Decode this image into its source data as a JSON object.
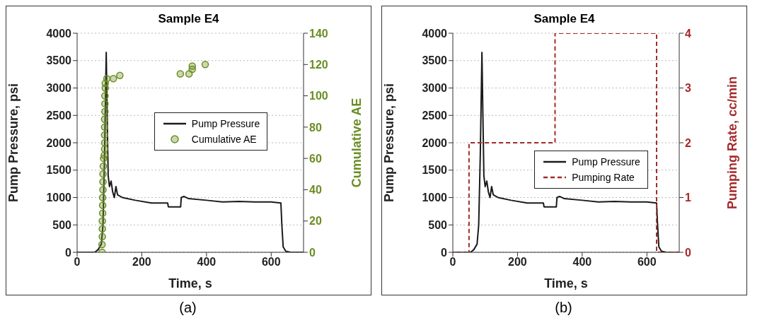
{
  "chart_data": [
    {
      "type": "line",
      "title": "Sample E4",
      "xlabel": "Time, s",
      "ylabel": "Pump Pressure, psi",
      "y2label": "Cumulative AE",
      "xlim": [
        0,
        700
      ],
      "xticks": [
        0,
        200,
        400,
        600
      ],
      "ylim": [
        0,
        4000
      ],
      "yticks": [
        0,
        500,
        1000,
        1500,
        2000,
        2500,
        3000,
        3500,
        4000
      ],
      "y2lim": [
        0,
        140
      ],
      "y2ticks": [
        0,
        20,
        40,
        60,
        80,
        100,
        120,
        140
      ],
      "grid": "y",
      "legend": "center",
      "annotations": [
        "(a)"
      ],
      "series": [
        {
          "name": "Pump Pressure",
          "color": "#1a1a1a",
          "marker": "none",
          "line_style": "solid",
          "x": [
            0,
            55,
            65,
            75,
            80,
            85,
            90,
            93,
            96,
            100,
            105,
            110,
            115,
            120,
            125,
            140,
            180,
            230,
            280,
            282,
            320,
            322,
            330,
            345,
            400,
            450,
            500,
            550,
            600,
            630,
            633,
            637,
            645,
            660,
            700
          ],
          "values": [
            0,
            0,
            50,
            150,
            500,
            1800,
            3650,
            2500,
            1400,
            1200,
            1300,
            1100,
            1000,
            1200,
            1050,
            1000,
            950,
            900,
            900,
            830,
            830,
            1000,
            1020,
            980,
            950,
            920,
            930,
            920,
            920,
            900,
            500,
            100,
            20,
            0,
            0
          ]
        },
        {
          "name": "Cumulative AE",
          "type": "scatter",
          "axis": "y2",
          "color": "#6b8e23",
          "marker": "circle",
          "x": [
            77,
            77,
            78,
            78,
            78,
            79,
            79,
            79,
            80,
            80,
            80,
            81,
            82,
            84,
            85,
            85,
            85,
            85,
            85,
            86,
            86,
            86,
            87,
            87,
            92,
            112,
            132,
            319,
            346,
            356,
            356,
            396
          ],
          "values": [
            0,
            5,
            10,
            15,
            20,
            25,
            30,
            35,
            40,
            45,
            50,
            55,
            60,
            62,
            66,
            70,
            75,
            80,
            85,
            90,
            95,
            100,
            105,
            108,
            111,
            111,
            113,
            114,
            114,
            117,
            119,
            120
          ]
        }
      ]
    },
    {
      "type": "line",
      "title": "Sample E4",
      "xlabel": "Time, s",
      "ylabel": "Pump Pressure, psi",
      "y2label": "Pumping Rate, cc/min",
      "xlim": [
        0,
        700
      ],
      "xticks": [
        0,
        200,
        400,
        600
      ],
      "ylim": [
        0,
        4000
      ],
      "yticks": [
        0,
        500,
        1000,
        1500,
        2000,
        2500,
        3000,
        3500,
        4000
      ],
      "y2lim": [
        0,
        4
      ],
      "y2ticks": [
        0,
        1,
        2,
        3,
        4
      ],
      "grid": "y",
      "legend": "right",
      "annotations": [
        "(b)"
      ],
      "series": [
        {
          "name": "Pump Pressure",
          "color": "#1a1a1a",
          "marker": "none",
          "line_style": "solid",
          "x": [
            0,
            55,
            65,
            75,
            80,
            85,
            90,
            93,
            96,
            100,
            105,
            110,
            115,
            120,
            125,
            140,
            180,
            230,
            280,
            282,
            320,
            322,
            330,
            345,
            400,
            450,
            500,
            550,
            600,
            630,
            633,
            637,
            645,
            660,
            700
          ],
          "values": [
            0,
            0,
            50,
            150,
            500,
            1800,
            3650,
            2500,
            1400,
            1200,
            1300,
            1100,
            1000,
            1200,
            1050,
            1000,
            950,
            900,
            900,
            830,
            830,
            1000,
            1020,
            980,
            950,
            920,
            930,
            920,
            920,
            900,
            500,
            100,
            20,
            0,
            0
          ]
        },
        {
          "name": "Pumping Rate",
          "axis": "y2",
          "color": "#a52a2a",
          "marker": "none",
          "line_style": "dashed",
          "x": [
            0,
            50,
            50,
            316,
            316,
            630,
            630,
            700
          ],
          "values": [
            0,
            0,
            2,
            2,
            4,
            4,
            0,
            0
          ]
        }
      ]
    }
  ]
}
